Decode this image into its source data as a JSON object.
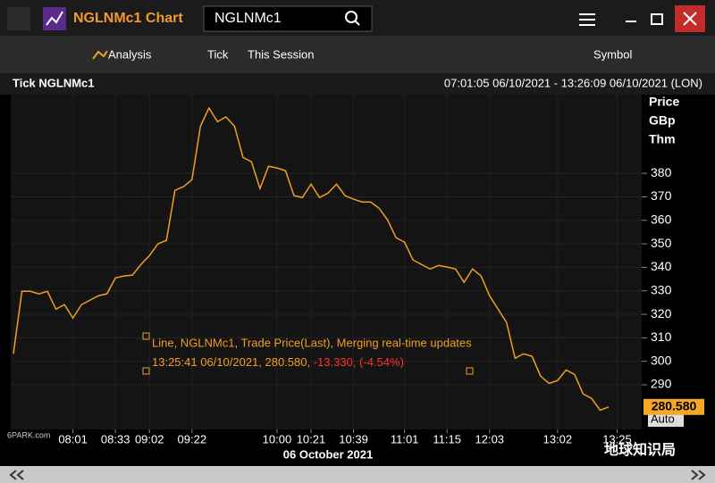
{
  "window": {
    "title": "NGLNMc1 Chart",
    "search": "NGLNMc1"
  },
  "toolbar": {
    "analysis": "Analysis",
    "interval": "Tick",
    "range": "This Session",
    "symbol": "Symbol"
  },
  "header": {
    "title": "Tick NGLNMc1",
    "time_range": "07:01:05 06/10/2021 - 13:26:09 06/10/2021 (LON)"
  },
  "watermarks": [
    "6PARK.com",
    "地球知识局"
  ],
  "chart_data": {
    "type": "line",
    "axis_units": [
      "Price",
      "GBp",
      "Thm"
    ],
    "x_label": "06 October 2021",
    "series": [
      {
        "name": "NGLNMc1",
        "color": "#f0a020",
        "values": [
          303.2,
          329.8,
          329.8,
          328.7,
          329.8,
          322.2,
          324.1,
          318.4,
          324.1,
          326,
          327.9,
          328.7,
          335.5,
          336.3,
          336.7,
          341.2,
          345,
          350,
          351.5,
          372.8,
          374.3,
          377.3,
          400.1,
          407.8,
          402,
          404,
          400.1,
          386.8,
          384.9,
          373.5,
          383,
          382.3,
          381.1,
          370.5,
          369.7,
          375.4,
          369.7,
          371.6,
          375.4,
          370.5,
          369,
          367.8,
          367.8,
          365.2,
          360.2,
          352.6,
          350.7,
          343.1,
          341.2,
          339.3,
          340.8,
          340.1,
          339.3,
          333.6,
          339.3,
          336.3,
          327.9,
          322.2,
          316.5,
          301.3,
          303.2,
          302.1,
          293.7,
          290.6,
          291.8,
          296.3,
          294.4,
          286.1,
          284.2,
          279.2,
          280.58
        ]
      }
    ],
    "xlim": [
      0,
      72
    ],
    "xticks": [
      {
        "value": 7,
        "label": "08:01"
      },
      {
        "value": 12,
        "label": "08:33"
      },
      {
        "value": 16,
        "label": "09:02"
      },
      {
        "value": 21,
        "label": "09:22"
      },
      {
        "value": 31,
        "label": "10:00"
      },
      {
        "value": 35,
        "label": "10:21"
      },
      {
        "value": 40,
        "label": "10:39"
      },
      {
        "value": 46,
        "label": "11:01"
      },
      {
        "value": 51,
        "label": "11:15"
      },
      {
        "value": 56,
        "label": "12:03"
      },
      {
        "value": 64,
        "label": "13:02"
      },
      {
        "value": 71,
        "label": "13:25"
      }
    ],
    "ylim": [
      271,
      413.5
    ],
    "yticks": [
      290,
      300,
      310,
      320,
      330,
      340,
      350,
      360,
      370,
      380
    ],
    "last": {
      "value": 280.58,
      "label": "280.580"
    },
    "scale_mode": "Auto",
    "grid": true,
    "annotation": {
      "line1": "Line, NGLNMc1, Trade Price(Last), Merging real-time updates",
      "line2": "13:25:41 06/10/2021, 280.580, ",
      "change": "-13.330, ",
      "change_pct": "(-4.54%)"
    }
  }
}
